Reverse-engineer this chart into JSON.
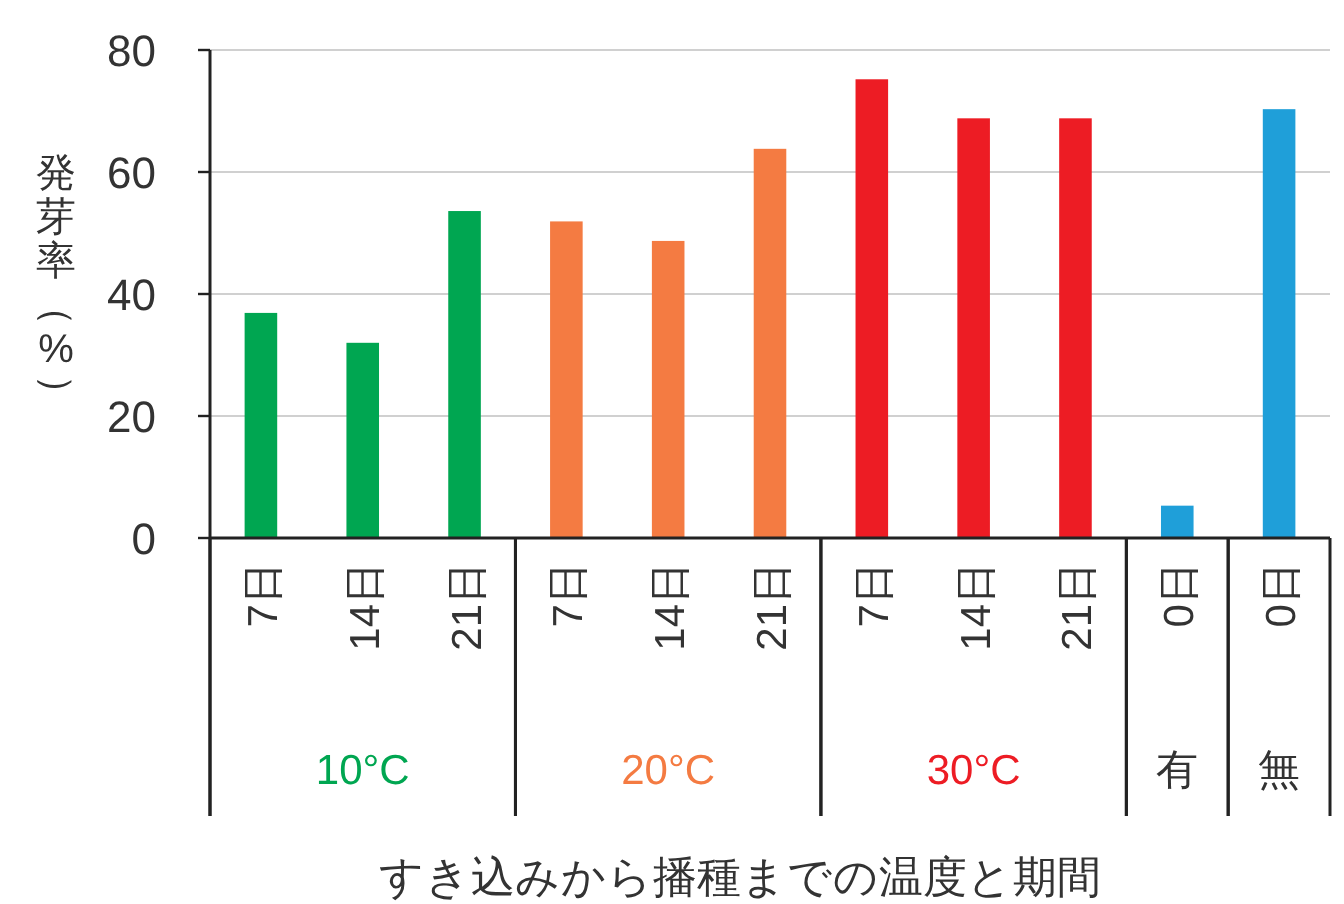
{
  "chart_data": {
    "type": "bar",
    "xlabel": "すき込みから播種までの温度と期間",
    "ylabel": "発芽率（%）",
    "categories": [
      "7日",
      "14日",
      "21日",
      "7日",
      "14日",
      "21日",
      "7日",
      "14日",
      "21日",
      "0日",
      "0日"
    ],
    "series": [
      {
        "name": "10°C",
        "color": "#00a651",
        "values": [
          36.9,
          32.0,
          53.6,
          null,
          null,
          null,
          null,
          null,
          null,
          null,
          null
        ]
      },
      {
        "name": "20°C",
        "color": "#f47b42",
        "values": [
          null,
          null,
          null,
          51.9,
          48.7,
          63.8,
          null,
          null,
          null,
          null,
          null
        ]
      },
      {
        "name": "30°C",
        "color": "#ed1c24",
        "values": [
          null,
          null,
          null,
          null,
          null,
          null,
          75.2,
          68.8,
          68.8,
          null,
          null
        ]
      },
      {
        "color": "#1f9fd9",
        "values": [
          null,
          null,
          null,
          null,
          null,
          null,
          null,
          null,
          null,
          5.3,
          70.3
        ]
      }
    ],
    "annotations": [
      "有",
      "無"
    ],
    "ylim": [
      0,
      80
    ],
    "yticks": [
      0,
      20,
      40,
      60,
      80
    ],
    "grid": "y"
  }
}
